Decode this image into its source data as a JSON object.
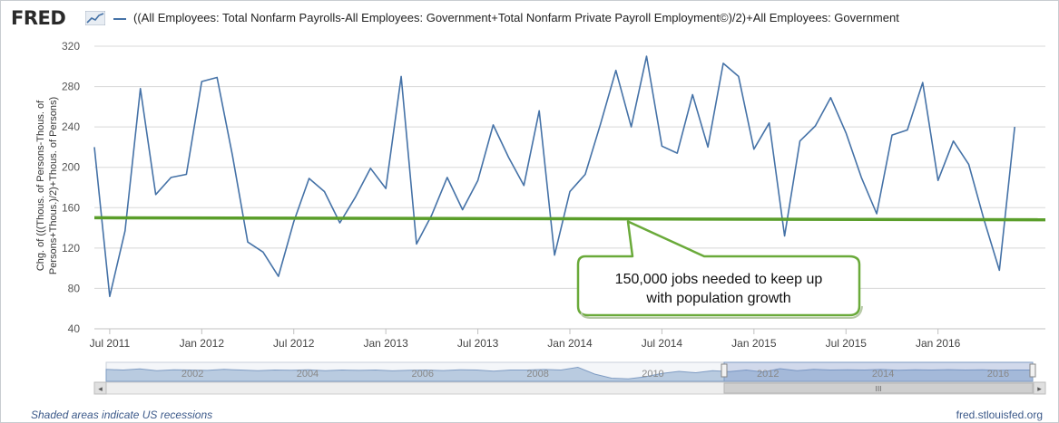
{
  "header": {
    "logo_text": "FRED",
    "logo_icon": "line-chart-icon",
    "legend_text": "((All Employees: Total Nonfarm Payrolls-All Employees: Government+Total Nonfarm Private Payroll Employment©)/2)+All Employees: Government",
    "series_color": "#4572a7"
  },
  "chart_data": {
    "type": "line",
    "ylabel_line1": "Chg. of (((Thous. of Persons-Thous. of",
    "ylabel_line2": "Persons+Thous.)/2)+Thous. of Persons)",
    "ylim": [
      40,
      320
    ],
    "yticks": [
      40,
      80,
      120,
      160,
      200,
      240,
      280,
      320
    ],
    "xlim": [
      "2011-06",
      "2016-08"
    ],
    "xticks": [
      {
        "x": "2011-07",
        "label": "Jul 2011"
      },
      {
        "x": "2012-01",
        "label": "Jan 2012"
      },
      {
        "x": "2012-07",
        "label": "Jul 2012"
      },
      {
        "x": "2013-01",
        "label": "Jan 2013"
      },
      {
        "x": "2013-07",
        "label": "Jul 2013"
      },
      {
        "x": "2014-01",
        "label": "Jan 2014"
      },
      {
        "x": "2014-07",
        "label": "Jul 2014"
      },
      {
        "x": "2015-01",
        "label": "Jan 2015"
      },
      {
        "x": "2015-07",
        "label": "Jul 2015"
      },
      {
        "x": "2016-01",
        "label": "Jan 2016"
      }
    ],
    "grid": true,
    "series": [
      {
        "color": "#4572a7",
        "x": [
          "2011-06",
          "2011-07",
          "2011-08",
          "2011-09",
          "2011-10",
          "2011-11",
          "2011-12",
          "2012-01",
          "2012-02",
          "2012-03",
          "2012-04",
          "2012-05",
          "2012-06",
          "2012-07",
          "2012-08",
          "2012-09",
          "2012-10",
          "2012-11",
          "2012-12",
          "2013-01",
          "2013-02",
          "2013-03",
          "2013-04",
          "2013-05",
          "2013-06",
          "2013-07",
          "2013-08",
          "2013-09",
          "2013-10",
          "2013-11",
          "2013-12",
          "2014-01",
          "2014-02",
          "2014-03",
          "2014-04",
          "2014-05",
          "2014-06",
          "2014-07",
          "2014-08",
          "2014-09",
          "2014-10",
          "2014-11",
          "2014-12",
          "2015-01",
          "2015-02",
          "2015-03",
          "2015-04",
          "2015-05",
          "2015-06",
          "2015-07",
          "2015-08",
          "2015-09",
          "2015-10",
          "2015-11",
          "2015-12",
          "2016-01",
          "2016-02",
          "2016-03",
          "2016-04",
          "2016-05",
          "2016-06"
        ],
        "values": [
          220,
          72,
          137,
          278,
          173,
          190,
          193,
          285,
          289,
          212,
          126,
          116,
          92,
          146,
          189,
          176,
          145,
          170,
          199,
          179,
          290,
          124,
          153,
          190,
          158,
          187,
          242,
          210,
          182,
          256,
          113,
          176,
          193,
          243,
          296,
          240,
          310,
          221,
          214,
          272,
          220,
          303,
          290,
          218,
          244,
          132,
          226,
          241,
          269,
          234,
          190,
          154,
          232,
          237,
          284,
          187,
          226,
          203,
          148,
          98,
          240
        ]
      },
      {
        "color": "#5a9e2a",
        "x": [
          "2011-06",
          "2016-06"
        ],
        "values": [
          150,
          148
        ]
      }
    ],
    "annotation": {
      "line1": "150,000 jobs needed to keep up",
      "line2": "with population growth",
      "border_color": "#6aaa3a"
    }
  },
  "navigator": {
    "labels": [
      "2002",
      "2004",
      "2006",
      "2008",
      "2010",
      "2012",
      "2014",
      "2016"
    ],
    "scroll_grip": "III",
    "left_arrow": "◂",
    "right_arrow": "▸"
  },
  "footer": {
    "recession_note": "Shaded areas indicate US recessions",
    "source": "fred.stlouisfed.org"
  }
}
